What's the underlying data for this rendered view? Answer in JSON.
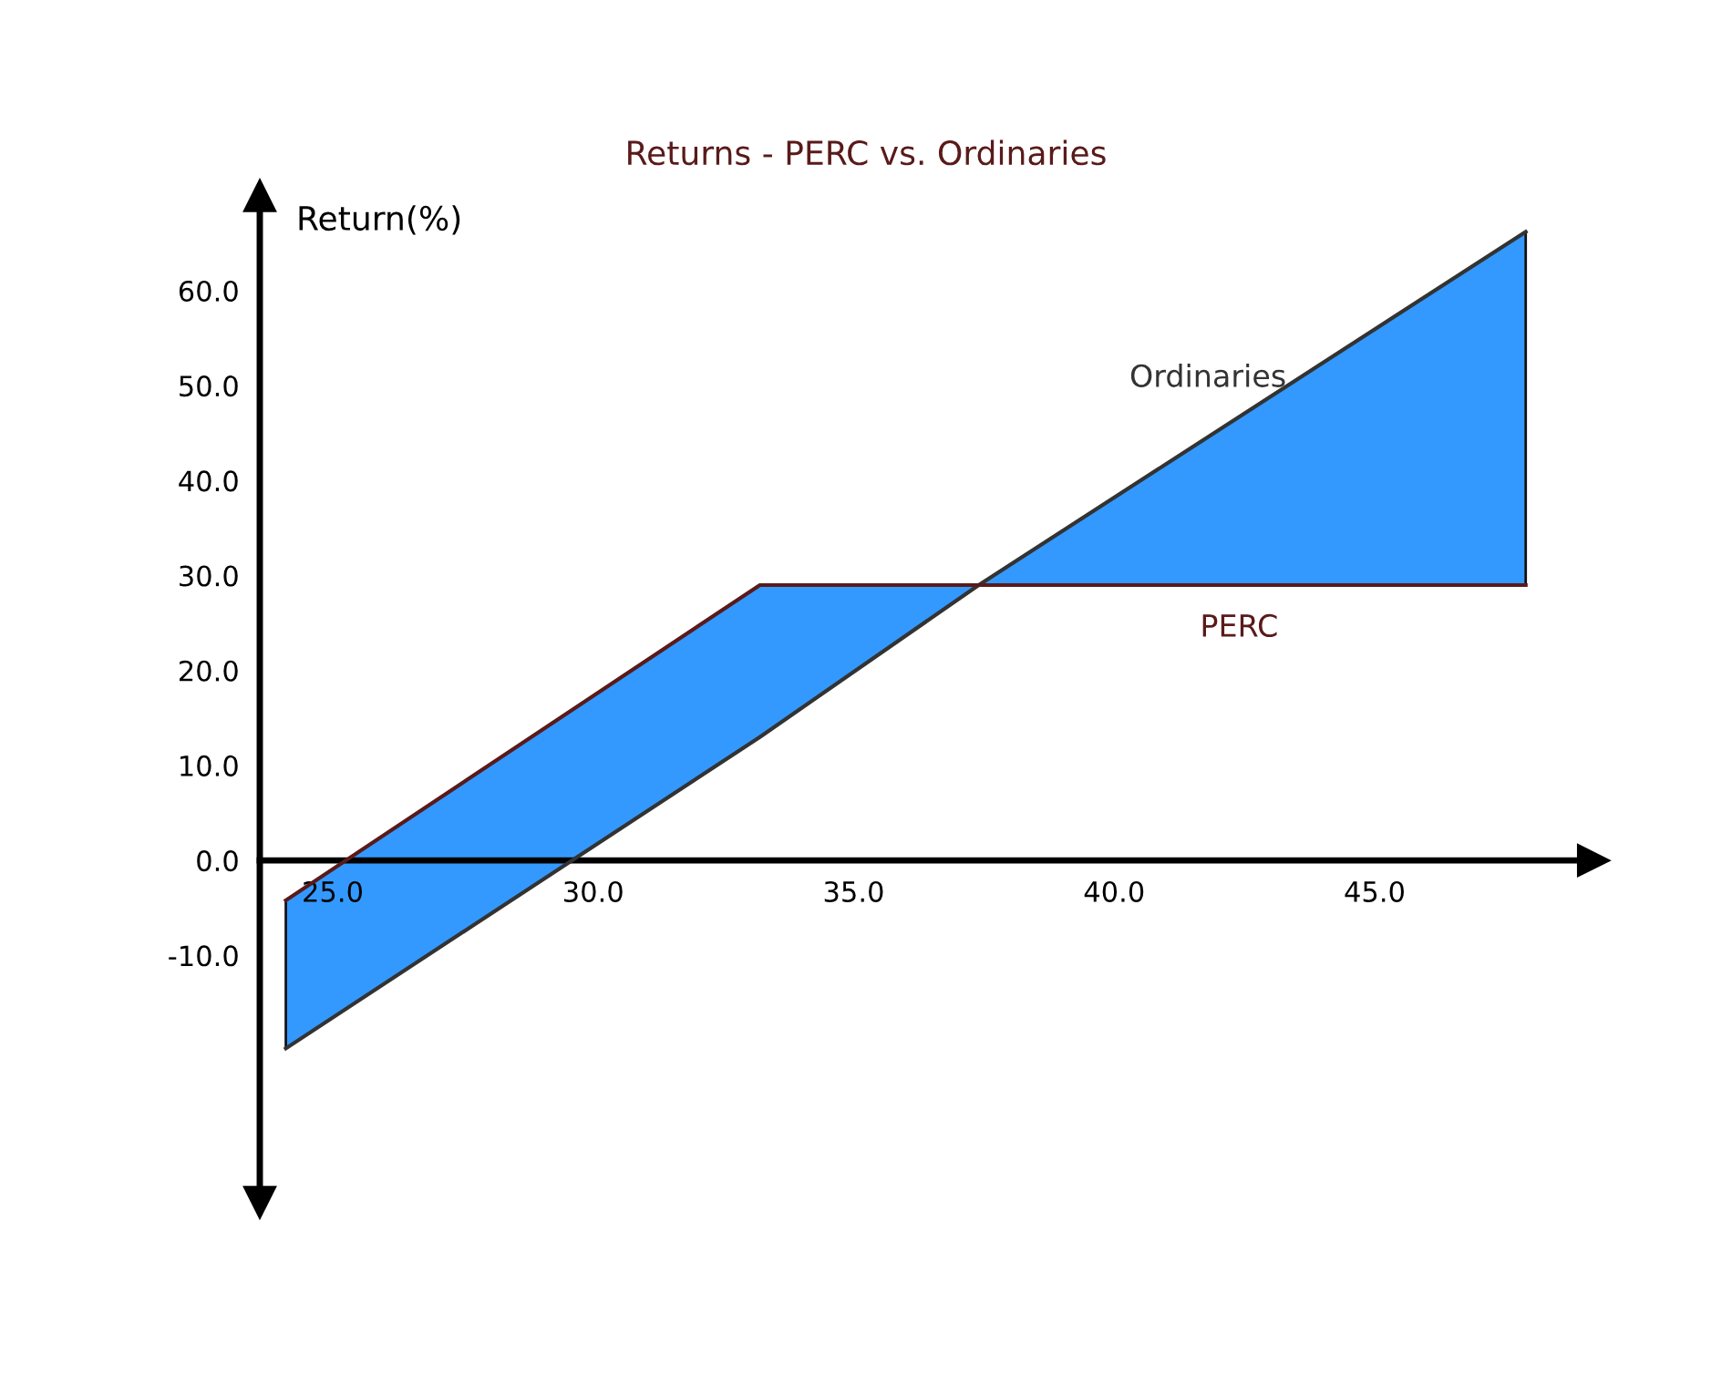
{
  "chart_data": {
    "type": "line",
    "title": "Returns - PERC vs. Ordinaries",
    "ylabel": "Return(%)",
    "x": [
      24.1,
      33.2,
      37.4,
      47.9
    ],
    "series": [
      {
        "name": "Ordinaries",
        "color": "#333333",
        "values": [
          -19.8,
          13.0,
          29.0,
          66.2
        ],
        "lower": [
          -19.8,
          13.0,
          29.0,
          29.0
        ],
        "upper": [
          -4.2,
          29.0,
          29.0,
          66.2
        ]
      },
      {
        "name": "PERC",
        "color": "#5a1a1a",
        "values": [
          -4.2,
          29.0,
          29.0,
          29.0
        ]
      }
    ],
    "colors": [
      "#3399ff"
    ],
    "xlim": [
      23.6,
      49.2
    ],
    "ylim": [
      -36,
      70
    ],
    "xticks": [
      {
        "value": 25,
        "label": "25.0"
      },
      {
        "value": 30,
        "label": "30.0"
      },
      {
        "value": 35,
        "label": "35.0"
      },
      {
        "value": 40,
        "label": "40.0"
      },
      {
        "value": 45,
        "label": "45.0"
      }
    ],
    "yticks": [
      {
        "value": -10,
        "label": "-10.0"
      },
      {
        "value": 0,
        "label": "0.0"
      },
      {
        "value": 10,
        "label": "10.0"
      },
      {
        "value": 20,
        "label": "20.0"
      },
      {
        "value": 30,
        "label": "30.0"
      },
      {
        "value": 40,
        "label": "40.0"
      },
      {
        "value": 50,
        "label": "50.0"
      },
      {
        "value": 60,
        "label": "60.0"
      }
    ],
    "grid": false,
    "legend": false,
    "marker": "none",
    "line_style": "solid"
  }
}
